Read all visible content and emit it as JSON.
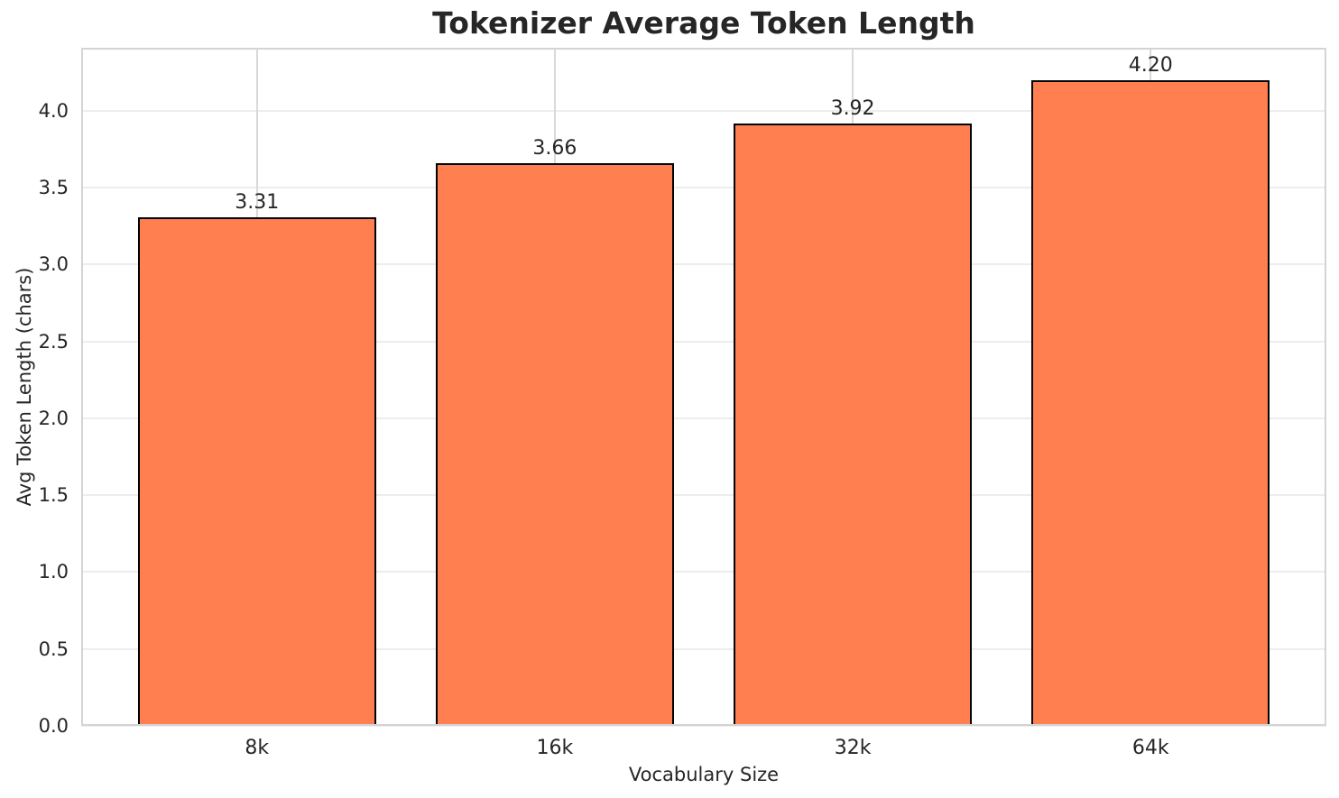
{
  "chart_data": {
    "type": "bar",
    "title": "Tokenizer Average Token Length",
    "xlabel": "Vocabulary Size",
    "ylabel": "Avg Token Length (chars)",
    "categories": [
      "8k",
      "16k",
      "32k",
      "64k"
    ],
    "values": [
      3.31,
      3.66,
      3.92,
      4.2
    ],
    "value_labels": [
      "3.31",
      "3.66",
      "3.92",
      "4.20"
    ],
    "yticks": [
      0.0,
      0.5,
      1.0,
      1.5,
      2.0,
      2.5,
      3.0,
      3.5,
      4.0
    ],
    "ytick_labels": [
      "0.0",
      "0.5",
      "1.0",
      "1.5",
      "2.0",
      "2.5",
      "3.0",
      "3.5",
      "4.0"
    ],
    "ylim": [
      0,
      4.41
    ],
    "xlim": [
      -0.59,
      3.59
    ],
    "bar_width_units": 0.8,
    "grid": "both",
    "legend": "none",
    "colors": {
      "bar_fill": "#FF7F50",
      "bar_edge": "#000000",
      "horizontal_grid": "#ededed",
      "vertical_grid": "#d9d9d9",
      "spine": "#d4d4d4",
      "text": "#262626"
    }
  }
}
